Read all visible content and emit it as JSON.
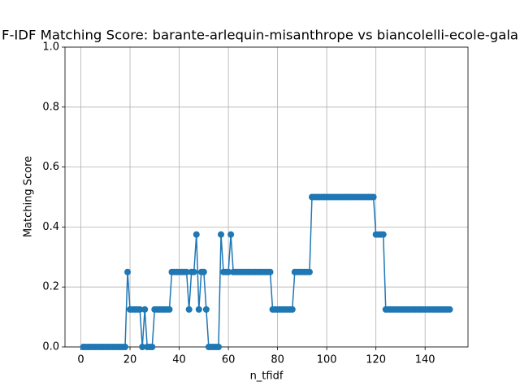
{
  "chart_data": {
    "type": "line",
    "title": "F-IDF Matching Score: barante-arlequin-misanthrope vs biancolelli-ecole-gala",
    "xlabel": "n_tfidf",
    "ylabel": "Matching Score",
    "color": "#1f77b4",
    "grid": true,
    "marker": "o",
    "x": [
      1,
      2,
      3,
      4,
      5,
      6,
      7,
      8,
      9,
      10,
      11,
      12,
      13,
      14,
      15,
      16,
      17,
      18,
      19,
      20,
      21,
      22,
      23,
      24,
      25,
      26,
      27,
      28,
      29,
      30,
      31,
      32,
      33,
      34,
      35,
      36,
      37,
      38,
      39,
      40,
      41,
      42,
      43,
      44,
      45,
      46,
      47,
      48,
      49,
      50,
      51,
      52,
      53,
      54,
      55,
      56,
      57,
      58,
      59,
      60,
      61,
      62,
      63,
      64,
      65,
      66,
      67,
      68,
      69,
      70,
      71,
      72,
      73,
      74,
      75,
      76,
      77,
      78,
      79,
      80,
      81,
      82,
      83,
      84,
      85,
      86,
      87,
      88,
      89,
      90,
      91,
      92,
      93,
      94,
      95,
      96,
      97,
      98,
      99,
      100,
      101,
      102,
      103,
      104,
      105,
      106,
      107,
      108,
      109,
      110,
      111,
      112,
      113,
      114,
      115,
      116,
      117,
      118,
      119,
      120,
      121,
      122,
      123,
      124,
      125,
      126,
      127,
      128,
      129,
      130,
      131,
      132,
      133,
      134,
      135,
      136,
      137,
      138,
      139,
      140,
      141,
      142,
      143,
      144,
      145,
      146,
      147,
      148,
      149,
      150
    ],
    "values": [
      0,
      0,
      0,
      0,
      0,
      0,
      0,
      0,
      0,
      0,
      0,
      0,
      0,
      0,
      0,
      0,
      0,
      0,
      0.25,
      0.125,
      0.125,
      0.125,
      0.125,
      0.125,
      0,
      0.125,
      0,
      0,
      0,
      0.125,
      0.125,
      0.125,
      0.125,
      0.125,
      0.125,
      0.125,
      0.25,
      0.25,
      0.25,
      0.25,
      0.25,
      0.25,
      0.25,
      0.125,
      0.25,
      0.25,
      0.375,
      0.125,
      0.25,
      0.25,
      0.125,
      0,
      0,
      0,
      0,
      0,
      0.375,
      0.25,
      0.25,
      0.25,
      0.375,
      0.25,
      0.25,
      0.25,
      0.25,
      0.25,
      0.25,
      0.25,
      0.25,
      0.25,
      0.25,
      0.25,
      0.25,
      0.25,
      0.25,
      0.25,
      0.25,
      0.125,
      0.125,
      0.125,
      0.125,
      0.125,
      0.125,
      0.125,
      0.125,
      0.125,
      0.25,
      0.25,
      0.25,
      0.25,
      0.25,
      0.25,
      0.25,
      0.5,
      0.5,
      0.5,
      0.5,
      0.5,
      0.5,
      0.5,
      0.5,
      0.5,
      0.5,
      0.5,
      0.5,
      0.5,
      0.5,
      0.5,
      0.5,
      0.5,
      0.5,
      0.5,
      0.5,
      0.5,
      0.5,
      0.5,
      0.5,
      0.5,
      0.5,
      0.375,
      0.375,
      0.375,
      0.375,
      0.125,
      0.125,
      0.125,
      0.125,
      0.125,
      0.125,
      0.125,
      0.125,
      0.125,
      0.125,
      0.125,
      0.125,
      0.125,
      0.125,
      0.125,
      0.125,
      0.125,
      0.125,
      0.125,
      0.125,
      0.125,
      0.125,
      0.125,
      0.125,
      0.125,
      0.125,
      0.125
    ],
    "xlim": [
      -6.45,
      157.45
    ],
    "xticks": [
      0,
      20,
      40,
      60,
      80,
      100,
      120,
      140
    ],
    "ylim": [
      0,
      1
    ],
    "yticks": [
      {
        "value": 0,
        "label": "0.0"
      },
      {
        "value": 0.2,
        "label": "0.2"
      },
      {
        "value": 0.4,
        "label": "0.4"
      },
      {
        "value": 0.6,
        "label": "0.6"
      },
      {
        "value": 0.8,
        "label": "0.8"
      },
      {
        "value": 1,
        "label": "1.0"
      }
    ]
  }
}
